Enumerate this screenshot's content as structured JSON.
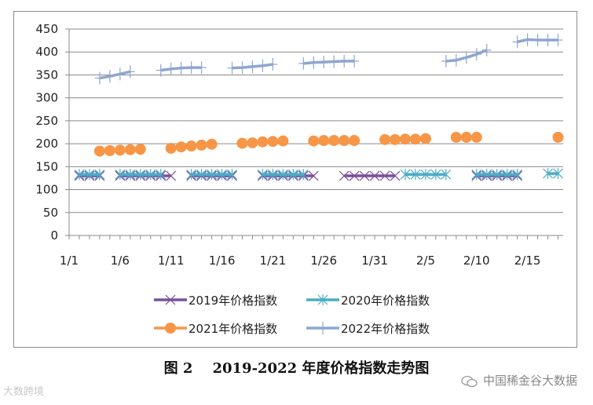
{
  "caption": {
    "figure_no": "图 2",
    "title": "2019-2022 年度价格指数走势图"
  },
  "watermarks": {
    "left": "大数跨境",
    "right": "中国稀金谷大数据"
  },
  "chart_data": {
    "type": "line",
    "title": "",
    "xlabel": "",
    "ylabel": "",
    "ylim": [
      0,
      450
    ],
    "yticks": [
      "0",
      "50",
      "100",
      "150",
      "200",
      "250",
      "300",
      "350",
      "400",
      "450"
    ],
    "xticks": [
      {
        "day": 1,
        "label": "1/1"
      },
      {
        "day": 6,
        "label": "1/6"
      },
      {
        "day": 11,
        "label": "1/11"
      },
      {
        "day": 16,
        "label": "1/16"
      },
      {
        "day": 21,
        "label": "1/21"
      },
      {
        "day": 26,
        "label": "1/26"
      },
      {
        "day": 31,
        "label": "1/31"
      },
      {
        "day": 36,
        "label": "2/5"
      },
      {
        "day": 41,
        "label": "2/10"
      },
      {
        "day": 46,
        "label": "2/15"
      }
    ],
    "xlim": [
      1,
      49.5
    ],
    "grid": "horizontal",
    "legend": "bottom",
    "series": [
      {
        "name": "2019年价格指数",
        "color": "#7B4F9D",
        "marker": "x",
        "segments": [
          [
            [
              2,
              130
            ],
            [
              3,
              130
            ],
            [
              4,
              130
            ]
          ],
          [
            [
              6,
              130
            ],
            [
              7,
              130
            ],
            [
              8,
              130
            ],
            [
              9,
              130
            ],
            [
              10,
              130
            ],
            [
              11,
              130
            ]
          ],
          [
            [
              13,
              130
            ],
            [
              14,
              130
            ],
            [
              15,
              130
            ],
            [
              16,
              130
            ],
            [
              17,
              130
            ]
          ],
          [
            [
              20,
              130
            ],
            [
              21,
              130
            ],
            [
              22,
              130
            ],
            [
              23,
              130
            ],
            [
              24,
              130
            ],
            [
              25,
              130
            ]
          ],
          [
            [
              28,
              130
            ],
            [
              29,
              130
            ],
            [
              30,
              130
            ],
            [
              31,
              130
            ],
            [
              32,
              130
            ],
            [
              33,
              130
            ]
          ],
          [
            [
              41,
              130
            ],
            [
              42,
              130
            ],
            [
              43,
              130
            ],
            [
              44,
              130
            ],
            [
              45,
              130
            ]
          ]
        ]
      },
      {
        "name": "2020年价格指数",
        "color": "#4BACC6",
        "marker": "asterisk",
        "segments": [
          [
            [
              2,
              133
            ],
            [
              3,
              133
            ],
            [
              4,
              133
            ]
          ],
          [
            [
              6,
              133
            ],
            [
              7,
              133
            ],
            [
              8,
              133
            ],
            [
              9,
              133
            ],
            [
              10,
              133
            ]
          ],
          [
            [
              13,
              133
            ],
            [
              14,
              133
            ],
            [
              15,
              133
            ],
            [
              16,
              133
            ],
            [
              17,
              133
            ]
          ],
          [
            [
              20,
              133
            ],
            [
              21,
              133
            ],
            [
              22,
              133
            ],
            [
              23,
              133
            ],
            [
              24,
              133
            ]
          ],
          [
            [
              34,
              133
            ],
            [
              35,
              133
            ],
            [
              36,
              133
            ],
            [
              37,
              133
            ],
            [
              38,
              133
            ]
          ],
          [
            [
              41,
              133
            ],
            [
              42,
              133
            ],
            [
              43,
              133
            ],
            [
              44,
              133
            ],
            [
              45,
              133
            ]
          ],
          [
            [
              48,
              135
            ],
            [
              49,
              135
            ]
          ]
        ]
      },
      {
        "name": "2021年价格指数",
        "color": "#F79646",
        "marker": "circle",
        "segments": [
          [
            [
              4,
              184
            ],
            [
              5,
              185
            ],
            [
              6,
              186
            ],
            [
              7,
              187
            ],
            [
              8,
              188
            ]
          ],
          [
            [
              11,
              190
            ],
            [
              12,
              193
            ],
            [
              13,
              195
            ],
            [
              14,
              197
            ],
            [
              15,
              199
            ]
          ],
          [
            [
              18,
              201
            ],
            [
              19,
              202
            ],
            [
              20,
              204
            ],
            [
              21,
              205
            ],
            [
              22,
              206
            ]
          ],
          [
            [
              25,
              206
            ],
            [
              26,
              207
            ],
            [
              27,
              207
            ],
            [
              28,
              207
            ],
            [
              29,
              207
            ]
          ],
          [
            [
              32,
              209
            ],
            [
              33,
              209
            ],
            [
              34,
              210
            ],
            [
              35,
              210
            ],
            [
              36,
              211
            ]
          ],
          [
            [
              39,
              214
            ],
            [
              40,
              214
            ],
            [
              41,
              214
            ]
          ],
          [
            [
              49,
              214
            ]
          ]
        ]
      },
      {
        "name": "2022年价格指数",
        "color": "#8EA6CF",
        "marker": "plus",
        "segments": [
          [
            [
              4,
              343
            ],
            [
              5,
              347
            ],
            [
              6,
              352
            ],
            [
              7,
              357
            ]
          ],
          [
            [
              10,
              360
            ],
            [
              11,
              363
            ],
            [
              12,
              365
            ],
            [
              13,
              366
            ],
            [
              14,
              366
            ]
          ],
          [
            [
              17,
              365
            ],
            [
              18,
              366
            ],
            [
              19,
              368
            ],
            [
              20,
              370
            ],
            [
              21,
              373
            ]
          ],
          [
            [
              24,
              375
            ],
            [
              25,
              377
            ],
            [
              26,
              378
            ],
            [
              27,
              379
            ],
            [
              28,
              380
            ],
            [
              29,
              380
            ]
          ],
          [
            [
              38,
              380
            ],
            [
              39,
              382
            ],
            [
              40,
              388
            ],
            [
              41,
              395
            ],
            [
              42,
              404
            ]
          ],
          [
            [
              45,
              422
            ],
            [
              46,
              427
            ],
            [
              47,
              426
            ],
            [
              48,
              426
            ],
            [
              49,
              426
            ]
          ]
        ]
      }
    ]
  }
}
